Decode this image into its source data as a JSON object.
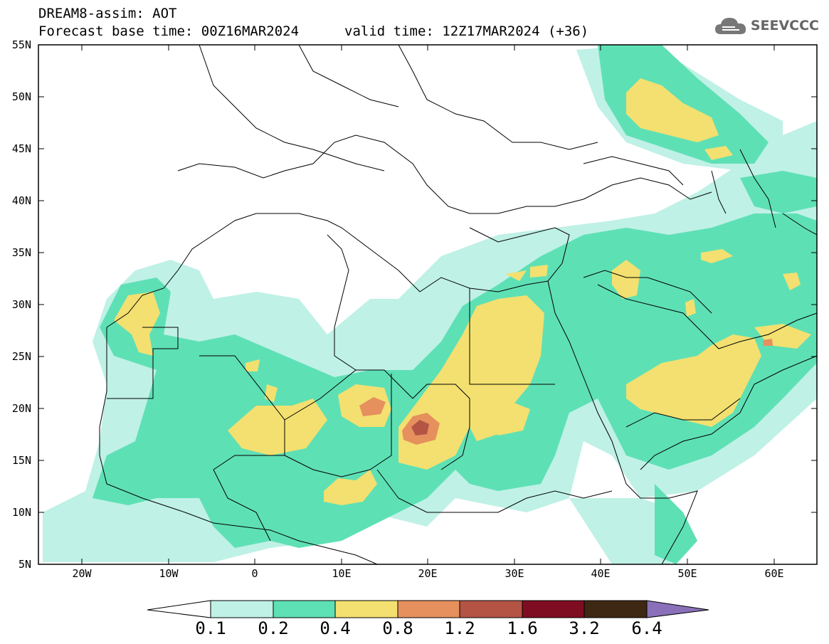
{
  "header": {
    "title_line1": "DREAM8-assim: AOT",
    "title_line2": "Forecast base time: 00Z16MAR2024",
    "valid_time": "valid time: 12Z17MAR2024 (+36)"
  },
  "logo": {
    "text": "SEEVCCC",
    "icon": "cloud-icon"
  },
  "map": {
    "variable": "AOT",
    "lon_range": [
      -25,
      65
    ],
    "lat_range": [
      5,
      55
    ],
    "lat_labels": [
      "55N",
      "50N",
      "45N",
      "40N",
      "35N",
      "30N",
      "25N",
      "20N",
      "15N",
      "10N",
      "5N"
    ],
    "lon_labels": [
      "20W",
      "10W",
      "0",
      "10E",
      "20E",
      "30E",
      "40E",
      "50E",
      "60E"
    ]
  },
  "colorbar": {
    "labels": [
      "0.1",
      "0.2",
      "0.4",
      "0.8",
      "1.2",
      "1.6",
      "3.2",
      "6.4"
    ],
    "colors": [
      "#ffffff",
      "#bff1e6",
      "#5ee0b5",
      "#f3e070",
      "#e6905e",
      "#b35444",
      "#7f0d21",
      "#3f2813",
      "#8a70b8"
    ]
  }
}
